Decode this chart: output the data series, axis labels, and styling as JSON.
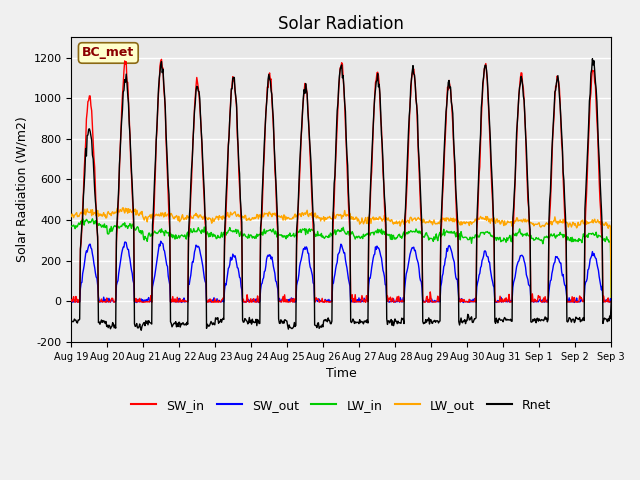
{
  "title": "Solar Radiation",
  "xlabel": "Time",
  "ylabel": "Solar Radiation (W/m2)",
  "ylim": [
    -200,
    1300
  ],
  "yticks": [
    -200,
    0,
    200,
    400,
    600,
    800,
    1000,
    1200
  ],
  "total_days": 15,
  "colors": {
    "SW_in": "#ff0000",
    "SW_out": "#0000ff",
    "LW_in": "#00cc00",
    "LW_out": "#ffa500",
    "Rnet": "#000000"
  },
  "legend_label": "BC_met",
  "legend_label_color": "#8B0000",
  "legend_box_color": "#ffffcc",
  "legend_box_edge_color": "#8B6914",
  "background_color": "#e8e8e8",
  "grid_color": "#ffffff",
  "SW_in_peaks": [
    1020,
    1170,
    1180,
    1080,
    1100,
    1130,
    1060,
    1170,
    1130,
    1150,
    1080,
    1160,
    1120,
    1110,
    1140
  ],
  "SW_out_peaks": [
    280,
    290,
    290,
    270,
    230,
    230,
    270,
    270,
    270,
    270,
    270,
    240,
    230,
    220,
    230
  ],
  "LW_in_base": [
    380,
    360,
    330,
    335,
    330,
    330,
    335,
    335,
    330,
    330,
    325,
    320,
    320,
    315,
    315
  ],
  "LW_out_base": [
    430,
    440,
    420,
    410,
    420,
    420,
    420,
    415,
    400,
    395,
    395,
    395,
    390,
    385,
    385
  ],
  "Rnet_peaks": [
    850,
    1100,
    1170,
    1060,
    1090,
    1100,
    1050,
    1160,
    1110,
    1140,
    1075,
    1150,
    1095,
    1100,
    1185
  ],
  "Rnet_night": [
    -100,
    -120,
    -110,
    -110,
    -95,
    -100,
    -120,
    -100,
    -100,
    -100,
    -100,
    -90,
    -90,
    -90,
    -90
  ],
  "tick_labels": [
    "Aug 19",
    "Aug 20",
    "Aug 21",
    "Aug 22",
    "Aug 23",
    "Aug 24",
    "Aug 25",
    "Aug 26",
    "Aug 27",
    "Aug 28",
    "Aug 29",
    "Aug 30",
    "Aug 31",
    "Sep 1",
    "Sep 2",
    "Sep 3"
  ]
}
